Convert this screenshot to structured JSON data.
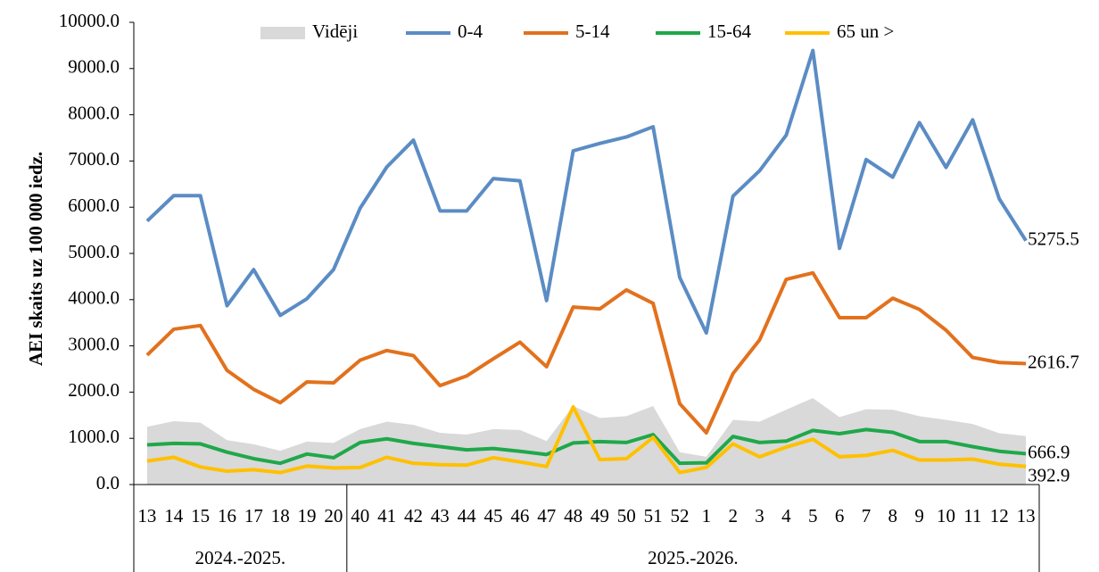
{
  "chart_data": {
    "type": "line",
    "y_label": "AEI skaits uz 100 000 iedz.",
    "categories": [
      "13",
      "14",
      "15",
      "16",
      "17",
      "18",
      "19",
      "20",
      "40",
      "41",
      "42",
      "43",
      "44",
      "45",
      "46",
      "47",
      "48",
      "49",
      "50",
      "51",
      "52",
      "1",
      "2",
      "3",
      "4",
      "5",
      "6",
      "7",
      "8",
      "9",
      "10",
      "11",
      "12",
      "13"
    ],
    "groups": [
      {
        "label": "2024.-2025.",
        "count": 8
      },
      {
        "label": "2025.-2026.",
        "count": 26
      }
    ],
    "ylim": [
      0,
      10000
    ],
    "yticks": [
      {
        "value": 0,
        "label": "0.0"
      },
      {
        "value": 1000,
        "label": "1000.0"
      },
      {
        "value": 2000,
        "label": "2000.0"
      },
      {
        "value": 3000,
        "label": "3000.0"
      },
      {
        "value": 4000,
        "label": "4000.0"
      },
      {
        "value": 5000,
        "label": "5000.0"
      },
      {
        "value": 6000,
        "label": "6000.0"
      },
      {
        "value": 7000,
        "label": "7000.0"
      },
      {
        "value": 8000,
        "label": "8000.0"
      },
      {
        "value": 9000,
        "label": "9000.0"
      },
      {
        "value": 10000,
        "label": "10000.0"
      }
    ],
    "legend": "top",
    "series": [
      {
        "name": "Vidēji",
        "kind": "area",
        "color": "#d9d9d9",
        "values": [
          1250,
          1370,
          1340,
          960,
          870,
          730,
          930,
          900,
          1200,
          1360,
          1290,
          1120,
          1080,
          1200,
          1180,
          940,
          1700,
          1440,
          1480,
          1700,
          700,
          600,
          1400,
          1360,
          1620,
          1870,
          1460,
          1630,
          1620,
          1480,
          1400,
          1310,
          1110,
          1050
        ]
      },
      {
        "name": "0-4",
        "kind": "line",
        "label_last": true,
        "color": "#5b8cc4",
        "values": [
          5700,
          6250,
          6250,
          3870,
          4650,
          3660,
          4020,
          4650,
          5980,
          6870,
          7450,
          5920,
          5920,
          6620,
          6570,
          3980,
          7220,
          7380,
          7520,
          7740,
          4480,
          3280,
          6240,
          6790,
          7560,
          9390,
          5110,
          7030,
          6650,
          7830,
          6860,
          7890,
          6180,
          5275.5
        ]
      },
      {
        "name": "5-14",
        "kind": "line",
        "label_last": true,
        "color": "#e2711d",
        "values": [
          2800,
          3360,
          3440,
          2470,
          2060,
          1770,
          2220,
          2200,
          2690,
          2900,
          2790,
          2140,
          2350,
          2720,
          3080,
          2550,
          3840,
          3800,
          4210,
          3920,
          1750,
          1120,
          2400,
          3130,
          4440,
          4580,
          3610,
          3610,
          4030,
          3790,
          3340,
          2750,
          2640,
          2616.7
        ]
      },
      {
        "name": "15-64",
        "kind": "line",
        "label_last": true,
        "color": "#1fa84a",
        "values": [
          860,
          890,
          880,
          700,
          560,
          460,
          660,
          580,
          910,
          990,
          890,
          820,
          750,
          780,
          720,
          650,
          900,
          930,
          910,
          1080,
          460,
          470,
          1040,
          910,
          940,
          1170,
          1100,
          1190,
          1130,
          930,
          930,
          820,
          720,
          666.9
        ]
      },
      {
        "name": "65 un >",
        "kind": "line",
        "label_last": true,
        "color": "#ffc000",
        "values": [
          510,
          590,
          380,
          290,
          320,
          260,
          400,
          360,
          370,
          590,
          460,
          430,
          420,
          580,
          490,
          390,
          1680,
          540,
          560,
          1020,
          260,
          370,
          880,
          600,
          810,
          980,
          600,
          630,
          740,
          530,
          530,
          550,
          440,
          392.9
        ]
      }
    ]
  }
}
